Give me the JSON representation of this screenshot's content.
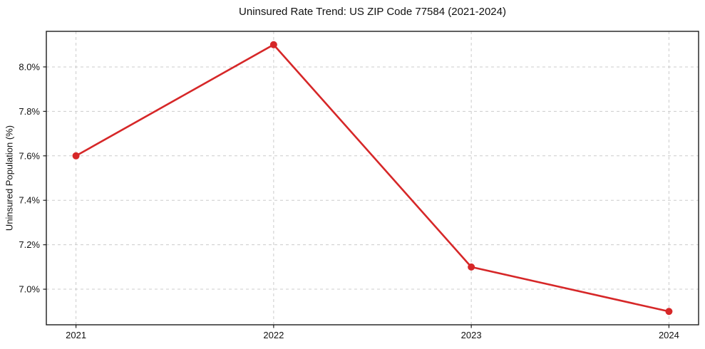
{
  "chart_data": {
    "type": "line",
    "title": "Uninsured Rate Trend: US ZIP Code 77584 (2021-2024)",
    "ylabel": "Uninsured Population (%)",
    "xlabel": "",
    "x": [
      2021,
      2022,
      2023,
      2024
    ],
    "series": [
      {
        "name": "Uninsured rate",
        "values": [
          7.6,
          8.1,
          7.1,
          6.9
        ]
      }
    ],
    "xticks": [
      2021,
      2022,
      2023,
      2024
    ],
    "xtick_labels": [
      "2021",
      "2022",
      "2023",
      "2024"
    ],
    "yticks": [
      7.0,
      7.2,
      7.4,
      7.6,
      7.8,
      8.0
    ],
    "ytick_labels": [
      "7.0%",
      "7.2%",
      "7.4%",
      "7.6%",
      "7.8%",
      "8.0%"
    ],
    "xlim": [
      2020.85,
      2024.15
    ],
    "ylim": [
      6.84,
      8.16
    ],
    "grid": true,
    "legend": false,
    "line_color": "#d62728",
    "marker_color": "#d62728",
    "grid_color": "#cccccc",
    "spine_color": "#1c1c1c",
    "marker": "circle"
  }
}
